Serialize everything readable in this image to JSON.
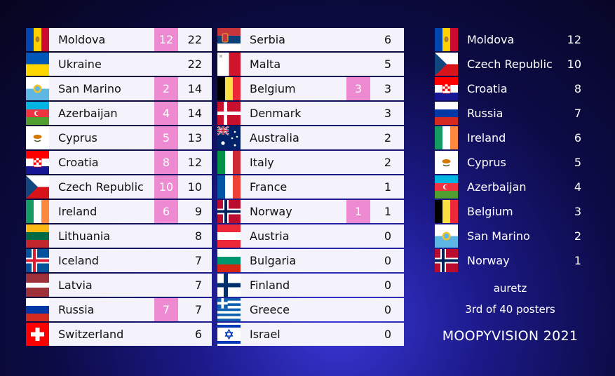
{
  "left_board": [
    {
      "country": "Moldova",
      "points": "12",
      "total": "22",
      "flag": "moldova-flag-icon"
    },
    {
      "country": "Ukraine",
      "points": "",
      "total": "22",
      "flag": "ukraine-flag-icon"
    },
    {
      "country": "San Marino",
      "points": "2",
      "total": "14",
      "flag": "san-marino-flag-icon"
    },
    {
      "country": "Azerbaijan",
      "points": "4",
      "total": "14",
      "flag": "azerbaijan-flag-icon"
    },
    {
      "country": "Cyprus",
      "points": "5",
      "total": "13",
      "flag": "cyprus-flag-icon"
    },
    {
      "country": "Croatia",
      "points": "8",
      "total": "12",
      "flag": "croatia-flag-icon"
    },
    {
      "country": "Czech Republic",
      "points": "10",
      "total": "10",
      "flag": "czech-flag-icon"
    },
    {
      "country": "Ireland",
      "points": "6",
      "total": "9",
      "flag": "ireland-flag-icon"
    },
    {
      "country": "Lithuania",
      "points": "",
      "total": "8",
      "flag": "lithuania-flag-icon"
    },
    {
      "country": "Iceland",
      "points": "",
      "total": "7",
      "flag": "iceland-flag-icon"
    },
    {
      "country": "Latvia",
      "points": "",
      "total": "7",
      "flag": "latvia-flag-icon"
    },
    {
      "country": "Russia",
      "points": "7",
      "total": "7",
      "flag": "russia-flag-icon"
    },
    {
      "country": "Switzerland",
      "points": "",
      "total": "6",
      "flag": "switzerland-flag-icon"
    }
  ],
  "right_board": [
    {
      "country": "Serbia",
      "points": "",
      "total": "6",
      "flag": "serbia-flag-icon"
    },
    {
      "country": "Malta",
      "points": "",
      "total": "5",
      "flag": "malta-flag-icon"
    },
    {
      "country": "Belgium",
      "points": "3",
      "total": "3",
      "flag": "belgium-flag-icon"
    },
    {
      "country": "Denmark",
      "points": "",
      "total": "3",
      "flag": "denmark-flag-icon"
    },
    {
      "country": "Australia",
      "points": "",
      "total": "2",
      "flag": "australia-flag-icon"
    },
    {
      "country": "Italy",
      "points": "",
      "total": "2",
      "flag": "italy-flag-icon"
    },
    {
      "country": "France",
      "points": "",
      "total": "1",
      "flag": "france-flag-icon"
    },
    {
      "country": "Norway",
      "points": "1",
      "total": "1",
      "flag": "norway-flag-icon"
    },
    {
      "country": "Austria",
      "points": "",
      "total": "0",
      "flag": "austria-flag-icon"
    },
    {
      "country": "Bulgaria",
      "points": "",
      "total": "0",
      "flag": "bulgaria-flag-icon"
    },
    {
      "country": "Finland",
      "points": "",
      "total": "0",
      "flag": "finland-flag-icon"
    },
    {
      "country": "Greece",
      "points": "",
      "total": "0",
      "flag": "greece-flag-icon"
    },
    {
      "country": "Israel",
      "points": "",
      "total": "0",
      "flag": "israel-flag-icon"
    }
  ],
  "given_points": [
    {
      "country": "Moldova",
      "points": "12",
      "flag": "moldova-flag-icon"
    },
    {
      "country": "Czech Republic",
      "points": "10",
      "flag": "czech-flag-icon"
    },
    {
      "country": "Croatia",
      "points": "8",
      "flag": "croatia-flag-icon"
    },
    {
      "country": "Russia",
      "points": "7",
      "flag": "russia-flag-icon"
    },
    {
      "country": "Ireland",
      "points": "6",
      "flag": "ireland-flag-icon"
    },
    {
      "country": "Cyprus",
      "points": "5",
      "flag": "cyprus-flag-icon"
    },
    {
      "country": "Azerbaijan",
      "points": "4",
      "flag": "azerbaijan-flag-icon"
    },
    {
      "country": "Belgium",
      "points": "3",
      "flag": "belgium-flag-icon"
    },
    {
      "country": "San Marino",
      "points": "2",
      "flag": "san-marino-flag-icon"
    },
    {
      "country": "Norway",
      "points": "1",
      "flag": "norway-flag-icon"
    }
  ],
  "info": {
    "poster_name": "auretz",
    "poster_rank": "3rd of 40 posters",
    "show_title": "MOOPYVISION 2021"
  },
  "colors": {
    "points_badge": "#ee8ad2",
    "row_background": "#f4f2fb",
    "accent_blue": "#3a37d8"
  }
}
